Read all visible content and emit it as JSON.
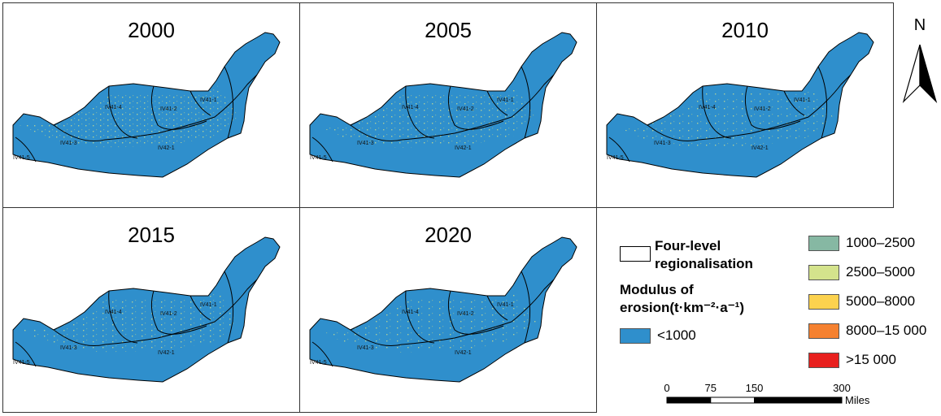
{
  "panels": [
    {
      "year": "2000",
      "regions": [
        "IV41-4",
        "IV41-2",
        "IV41-1",
        "IV41-3",
        "IV42-1",
        "IV41-5"
      ]
    },
    {
      "year": "2005",
      "regions": [
        "IV41-4",
        "IV41-2",
        "IV41-1",
        "IV41-3",
        "IV42-1",
        "IV41-5"
      ]
    },
    {
      "year": "2010",
      "regions": [
        "IV41-4",
        "IV41-2",
        "IV41-1",
        "IV41-3",
        "IV42-1",
        "IV41-5"
      ]
    },
    {
      "year": "2015",
      "regions": [
        "IV41-4",
        "IV41-2",
        "IV41-1",
        "IV41-3",
        "IV42-1",
        "IV41-5"
      ]
    },
    {
      "year": "2020",
      "regions": [
        "IV41-4",
        "IV41-2",
        "IV41-1",
        "IV41-3",
        "IV42-1",
        "IV41-5"
      ]
    }
  ],
  "north_label": "N",
  "legend": {
    "boundary_label": "Four-level regionalisation",
    "modulus_title": "Modulus of erosion(t·km⁻²·a⁻¹)",
    "classes": [
      {
        "label": "<1000",
        "color": "#2f8fcc"
      },
      {
        "label": "1000–2500",
        "color": "#86b8a3"
      },
      {
        "label": "2500–5000",
        "color": "#d4e38c"
      },
      {
        "label": "5000–8000",
        "color": "#fcd24e"
      },
      {
        "label": "8000–15 000",
        "color": "#f58130"
      },
      {
        "label": ">15 000",
        "color": "#e8201e"
      }
    ]
  },
  "scale_bar": {
    "ticks": [
      0,
      75,
      150,
      300
    ],
    "unit": "Miles"
  }
}
